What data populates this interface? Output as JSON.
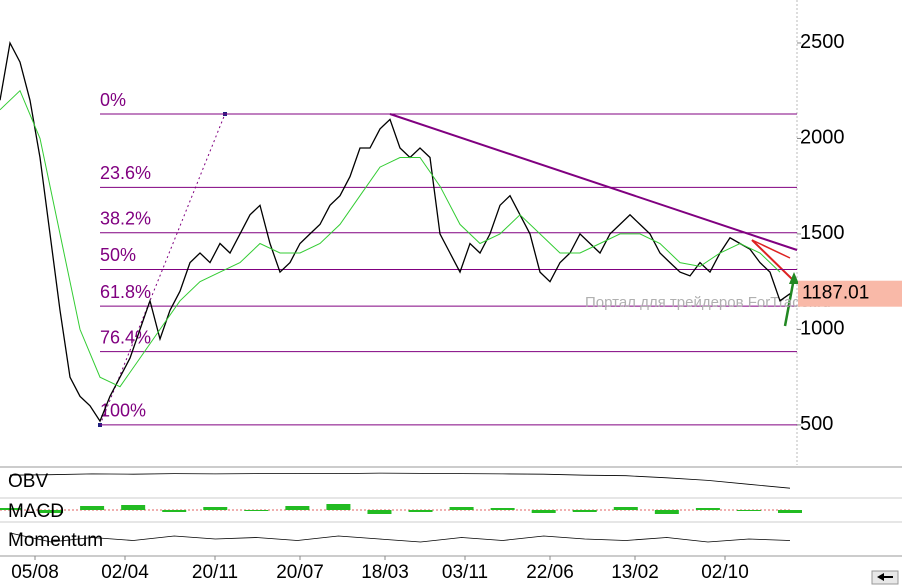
{
  "chart_data": {
    "type": "line",
    "ylim": [
      290,
      2725
    ],
    "yticks": [
      500,
      1000,
      1500,
      2000,
      2500
    ],
    "xlim": [
      0,
      797
    ],
    "xticks": [
      {
        "value": 35,
        "label": "05/08"
      },
      {
        "value": 125,
        "label": "02/04"
      },
      {
        "value": 215,
        "label": "20/11"
      },
      {
        "value": 300,
        "label": "20/07"
      },
      {
        "value": 385,
        "label": "18/03"
      },
      {
        "value": 465,
        "label": "03/11"
      },
      {
        "value": 550,
        "label": "22/06"
      },
      {
        "value": 635,
        "label": "13/02"
      },
      {
        "value": 725,
        "label": "02/10"
      }
    ],
    "series": [
      {
        "color": "#000000",
        "x": [
          0,
          10,
          20,
          30,
          40,
          50,
          60,
          70,
          80,
          90,
          100,
          110,
          120,
          130,
          140,
          150,
          160,
          170,
          180,
          190,
          200,
          210,
          220,
          230,
          240,
          250,
          260,
          270,
          280,
          290,
          300,
          310,
          320,
          330,
          340,
          350,
          360,
          370,
          380,
          390,
          400,
          410,
          420,
          430,
          440,
          450,
          460,
          470,
          480,
          490,
          500,
          510,
          520,
          530,
          540,
          550,
          560,
          570,
          580,
          590,
          600,
          610,
          620,
          630,
          640,
          650,
          660,
          670,
          680,
          690,
          700,
          710,
          720,
          730,
          740,
          750,
          760,
          770,
          780,
          790
        ],
        "values": [
          2200,
          2500,
          2400,
          2200,
          1900,
          1500,
          1100,
          750,
          650,
          600,
          520,
          650,
          750,
          850,
          1000,
          1150,
          950,
          1100,
          1200,
          1350,
          1400,
          1350,
          1450,
          1400,
          1500,
          1600,
          1650,
          1450,
          1300,
          1350,
          1450,
          1500,
          1550,
          1650,
          1700,
          1800,
          1950,
          1950,
          2050,
          2100,
          1950,
          1900,
          1950,
          1900,
          1500,
          1400,
          1300,
          1450,
          1400,
          1500,
          1650,
          1700,
          1600,
          1500,
          1300,
          1250,
          1350,
          1400,
          1500,
          1450,
          1400,
          1500,
          1550,
          1600,
          1550,
          1500,
          1400,
          1350,
          1300,
          1280,
          1350,
          1300,
          1400,
          1480,
          1450,
          1420,
          1350,
          1300,
          1150,
          1187
        ]
      },
      {
        "color": "#33cc33",
        "x": [
          0,
          20,
          40,
          60,
          80,
          100,
          120,
          140,
          160,
          180,
          200,
          220,
          240,
          260,
          280,
          300,
          320,
          340,
          360,
          380,
          400,
          420,
          440,
          460,
          480,
          500,
          520,
          540,
          560,
          580,
          600,
          620,
          640,
          660,
          680,
          700,
          720,
          740,
          760,
          780
        ],
        "values": [
          2150,
          2250,
          2000,
          1500,
          1000,
          750,
          700,
          850,
          1000,
          1150,
          1250,
          1300,
          1350,
          1450,
          1400,
          1400,
          1450,
          1550,
          1700,
          1850,
          1900,
          1900,
          1750,
          1550,
          1450,
          1500,
          1600,
          1500,
          1400,
          1400,
          1450,
          1500,
          1500,
          1450,
          1350,
          1330,
          1400,
          1450,
          1400,
          1300
        ]
      }
    ],
    "fib_levels": [
      {
        "value": 2128,
        "label": "0%"
      },
      {
        "value": 1744,
        "label": "23.6%"
      },
      {
        "value": 1506,
        "label": "38.2%"
      },
      {
        "value": 1314,
        "label": "50%"
      },
      {
        "value": 1122,
        "label": "61.8%"
      },
      {
        "value": 884,
        "label": "76.4%"
      },
      {
        "value": 500,
        "label": "100%"
      }
    ],
    "trendline": {
      "x": [
        390,
        797
      ],
      "values": [
        2128,
        1416
      ]
    },
    "last_price": 1187.01,
    "watermark": "Портал для трейдеров ForTrader.ru",
    "indicators": [
      {
        "label": "OBV",
        "ylim": [
          0,
          100
        ],
        "values": [
          80,
          82,
          85,
          84,
          86,
          85,
          86,
          87,
          86,
          88,
          87,
          86,
          85,
          84,
          80,
          78,
          70,
          60,
          45,
          30
        ]
      },
      {
        "label": "MACD",
        "ylim": [
          -100,
          100
        ],
        "values": [
          20,
          -30,
          40,
          50,
          -20,
          30,
          -10,
          40,
          60,
          -40,
          -20,
          30,
          20,
          -30,
          -20,
          30,
          -40,
          20,
          -10,
          -30
        ]
      },
      {
        "label": "Momentum",
        "ylim": [
          0,
          100
        ],
        "values": [
          70,
          40,
          55,
          45,
          60,
          50,
          55,
          45,
          60,
          50,
          40,
          55,
          45,
          60,
          50,
          45,
          55,
          40,
          50,
          45
        ]
      }
    ]
  }
}
